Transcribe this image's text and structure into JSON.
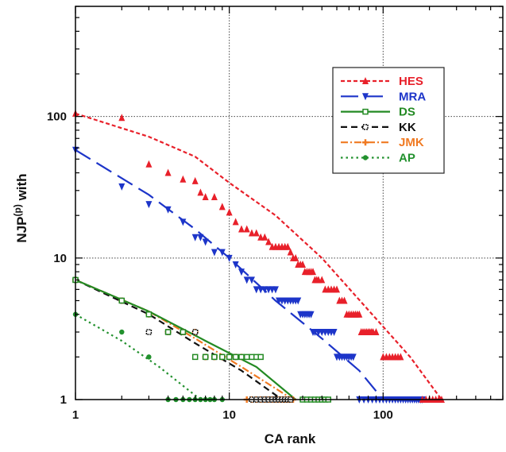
{
  "chart_data": {
    "type": "scatter",
    "xlabel": "CA rank",
    "ylabel_main": "NJP",
    "ylabel_sup": "(p)",
    "ylabel_tail": " with",
    "xscale": "log",
    "yscale": "log",
    "xlim": [
      1,
      600
    ],
    "ylim": [
      1,
      600
    ],
    "x_ticks": [
      1,
      10,
      100
    ],
    "x_tick_labels": [
      "1",
      "10",
      "100"
    ],
    "y_ticks": [
      1,
      10,
      100
    ],
    "y_tick_labels": [
      "1",
      "10",
      "100"
    ],
    "grid": "dotted at decades",
    "legend_position": "upper-right",
    "series": [
      {
        "name": "HES",
        "color": "#e8202a",
        "marker": "triangle-up",
        "line": "short-dash",
        "points": [
          [
            1,
            105
          ],
          [
            2,
            98
          ],
          [
            3,
            46
          ],
          [
            4,
            40
          ],
          [
            5,
            36
          ],
          [
            6,
            35
          ],
          [
            6.5,
            29
          ],
          [
            7,
            27
          ],
          [
            8,
            27
          ],
          [
            9,
            23
          ],
          [
            10,
            21
          ],
          [
            11,
            18
          ],
          [
            12,
            16
          ],
          [
            13,
            16
          ],
          [
            14,
            15
          ],
          [
            15,
            15
          ],
          [
            16,
            14
          ],
          [
            17,
            14
          ],
          [
            18,
            13
          ],
          [
            19,
            12
          ],
          [
            20,
            12
          ],
          [
            21,
            12
          ],
          [
            22,
            12
          ],
          [
            23,
            12
          ],
          [
            24,
            12
          ],
          [
            25,
            11
          ],
          [
            26,
            10
          ],
          [
            27,
            10
          ],
          [
            28,
            9
          ],
          [
            29,
            9
          ],
          [
            30,
            9
          ],
          [
            31,
            8
          ],
          [
            32,
            8
          ],
          [
            33,
            8
          ],
          [
            34,
            8
          ],
          [
            35,
            8
          ],
          [
            36,
            7
          ],
          [
            37,
            7
          ],
          [
            38,
            7
          ],
          [
            40,
            7
          ],
          [
            42,
            6
          ],
          [
            44,
            6
          ],
          [
            46,
            6
          ],
          [
            48,
            6
          ],
          [
            50,
            6
          ],
          [
            52,
            5
          ],
          [
            54,
            5
          ],
          [
            56,
            5
          ],
          [
            58,
            4
          ],
          [
            60,
            4
          ],
          [
            62,
            4
          ],
          [
            64,
            4
          ],
          [
            66,
            4
          ],
          [
            68,
            4
          ],
          [
            70,
            4
          ],
          [
            72,
            3
          ],
          [
            74,
            3
          ],
          [
            76,
            3
          ],
          [
            78,
            3
          ],
          [
            80,
            3
          ],
          [
            82,
            3
          ],
          [
            84,
            3
          ],
          [
            86,
            3
          ],
          [
            90,
            3
          ],
          [
            100,
            2
          ],
          [
            105,
            2
          ],
          [
            110,
            2
          ],
          [
            115,
            2
          ],
          [
            120,
            2
          ],
          [
            125,
            2
          ],
          [
            130,
            2
          ],
          [
            180,
            1
          ],
          [
            190,
            1
          ],
          [
            200,
            1
          ],
          [
            210,
            1
          ],
          [
            220,
            1
          ],
          [
            230,
            1
          ],
          [
            240,
            1
          ]
        ],
        "fit": [
          [
            1,
            105
          ],
          [
            3,
            72
          ],
          [
            6,
            52
          ],
          [
            10,
            34
          ],
          [
            20,
            20
          ],
          [
            40,
            10
          ],
          [
            80,
            4.3
          ],
          [
            150,
            2
          ],
          [
            240,
            1
          ]
        ]
      },
      {
        "name": "MRA",
        "color": "#1d35c9",
        "marker": "triangle-down",
        "line": "long-dash",
        "points": [
          [
            1,
            58
          ],
          [
            2,
            32
          ],
          [
            3,
            24
          ],
          [
            4,
            22
          ],
          [
            5,
            18
          ],
          [
            6,
            14
          ],
          [
            6.5,
            14
          ],
          [
            7,
            13
          ],
          [
            8,
            11
          ],
          [
            9,
            11
          ],
          [
            10,
            10
          ],
          [
            11,
            9
          ],
          [
            12,
            8
          ],
          [
            13,
            7
          ],
          [
            14,
            7
          ],
          [
            15,
            6
          ],
          [
            16,
            6
          ],
          [
            17,
            6
          ],
          [
            18,
            6
          ],
          [
            19,
            6
          ],
          [
            20,
            6
          ],
          [
            21,
            5
          ],
          [
            22,
            5
          ],
          [
            23,
            5
          ],
          [
            24,
            5
          ],
          [
            25,
            5
          ],
          [
            26,
            5
          ],
          [
            27,
            5
          ],
          [
            28,
            5
          ],
          [
            29,
            4
          ],
          [
            30,
            4
          ],
          [
            31,
            4
          ],
          [
            32,
            4
          ],
          [
            33,
            4
          ],
          [
            34,
            4
          ],
          [
            35,
            3
          ],
          [
            36,
            3
          ],
          [
            38,
            3
          ],
          [
            40,
            3
          ],
          [
            42,
            3
          ],
          [
            44,
            3
          ],
          [
            46,
            3
          ],
          [
            48,
            3
          ],
          [
            50,
            2
          ],
          [
            52,
            2
          ],
          [
            54,
            2
          ],
          [
            56,
            2
          ],
          [
            58,
            2
          ],
          [
            60,
            2
          ],
          [
            62,
            2
          ],
          [
            64,
            2
          ],
          [
            70,
            1
          ],
          [
            75,
            1
          ],
          [
            80,
            1
          ],
          [
            85,
            1
          ],
          [
            90,
            1
          ],
          [
            95,
            1
          ],
          [
            100,
            1
          ],
          [
            105,
            1
          ],
          [
            110,
            1
          ],
          [
            115,
            1
          ],
          [
            120,
            1
          ],
          [
            125,
            1
          ],
          [
            130,
            1
          ],
          [
            135,
            1
          ],
          [
            140,
            1
          ],
          [
            145,
            1
          ],
          [
            150,
            1
          ],
          [
            155,
            1
          ],
          [
            160,
            1
          ],
          [
            165,
            1
          ],
          [
            170,
            1
          ],
          [
            175,
            1
          ],
          [
            180,
            1
          ]
        ],
        "fit": [
          [
            1,
            58
          ],
          [
            3,
            28
          ],
          [
            6,
            16
          ],
          [
            10,
            10
          ],
          [
            20,
            5
          ],
          [
            40,
            2.7
          ],
          [
            70,
            1.6
          ],
          [
            100,
            1
          ]
        ]
      },
      {
        "name": "DS",
        "color": "#238a23",
        "marker": "square-open",
        "line": "solid",
        "points": [
          [
            1,
            7
          ],
          [
            2,
            5
          ],
          [
            3,
            4
          ],
          [
            4,
            3
          ],
          [
            5,
            3
          ],
          [
            6,
            2
          ],
          [
            7,
            2
          ],
          [
            8,
            2
          ],
          [
            9,
            2
          ],
          [
            10,
            2
          ],
          [
            11,
            2
          ],
          [
            12,
            2
          ],
          [
            13,
            2
          ],
          [
            14,
            2
          ],
          [
            15,
            2
          ],
          [
            16,
            2
          ],
          [
            30,
            1
          ],
          [
            32,
            1
          ],
          [
            34,
            1
          ],
          [
            36,
            1
          ],
          [
            38,
            1
          ],
          [
            40,
            1
          ],
          [
            42,
            1
          ],
          [
            44,
            1
          ]
        ],
        "fit": [
          [
            1,
            7
          ],
          [
            3,
            4.2
          ],
          [
            7,
            2.6
          ],
          [
            15,
            1.7
          ],
          [
            27,
            1
          ]
        ]
      },
      {
        "name": "KK",
        "color": "#111111",
        "marker": "square-open-dot",
        "line": "dash",
        "points": [
          [
            1,
            7
          ],
          [
            2,
            5
          ],
          [
            3,
            3
          ],
          [
            4,
            3
          ],
          [
            5,
            3
          ],
          [
            6,
            3
          ],
          [
            7,
            2
          ],
          [
            8,
            2
          ],
          [
            9,
            2
          ],
          [
            10,
            2
          ],
          [
            11,
            2
          ],
          [
            14,
            1
          ],
          [
            15,
            1
          ],
          [
            16,
            1
          ],
          [
            17,
            1
          ],
          [
            18,
            1
          ],
          [
            19,
            1
          ],
          [
            20,
            1
          ],
          [
            21,
            1
          ],
          [
            22,
            1
          ],
          [
            23,
            1
          ],
          [
            24,
            1
          ],
          [
            25,
            1
          ]
        ],
        "fit": [
          [
            1,
            7
          ],
          [
            3,
            4
          ],
          [
            6,
            2.5
          ],
          [
            12,
            1.6
          ],
          [
            22,
            1
          ]
        ]
      },
      {
        "name": "JMK",
        "color": "#f07a22",
        "marker": "plus",
        "line": "dash-dot",
        "points": [
          [
            1,
            7
          ],
          [
            2,
            5
          ],
          [
            3,
            4
          ],
          [
            4,
            3
          ],
          [
            5,
            3
          ],
          [
            6,
            3
          ],
          [
            7,
            2
          ],
          [
            8,
            2
          ],
          [
            9,
            2
          ],
          [
            10,
            2
          ],
          [
            11,
            2
          ],
          [
            12,
            2
          ],
          [
            13,
            1
          ],
          [
            14,
            1
          ],
          [
            15,
            1
          ],
          [
            16,
            1
          ],
          [
            17,
            1
          ],
          [
            18,
            1
          ],
          [
            19,
            1
          ],
          [
            20,
            1
          ],
          [
            21,
            1
          ],
          [
            22,
            1
          ],
          [
            23,
            1
          ],
          [
            24,
            1
          ],
          [
            25,
            1
          ],
          [
            26,
            1
          ]
        ],
        "fit": [
          [
            1,
            7
          ],
          [
            3,
            4.2
          ],
          [
            6,
            2.7
          ],
          [
            12,
            1.7
          ],
          [
            26,
            1
          ]
        ]
      },
      {
        "name": "AP",
        "color": "#22912e",
        "marker": "circle",
        "line": "dot",
        "points": [
          [
            1,
            4
          ],
          [
            2,
            3
          ],
          [
            3,
            2
          ],
          [
            4,
            1
          ],
          [
            4.5,
            1
          ],
          [
            5,
            1
          ],
          [
            5.5,
            1
          ],
          [
            6,
            1
          ],
          [
            6.5,
            1
          ],
          [
            7,
            1
          ],
          [
            7.5,
            1
          ],
          [
            8,
            1
          ],
          [
            9,
            1
          ]
        ],
        "fit": [
          [
            1,
            4
          ],
          [
            2,
            2.6
          ],
          [
            3.5,
            1.7
          ],
          [
            6.5,
            1
          ]
        ]
      }
    ]
  }
}
